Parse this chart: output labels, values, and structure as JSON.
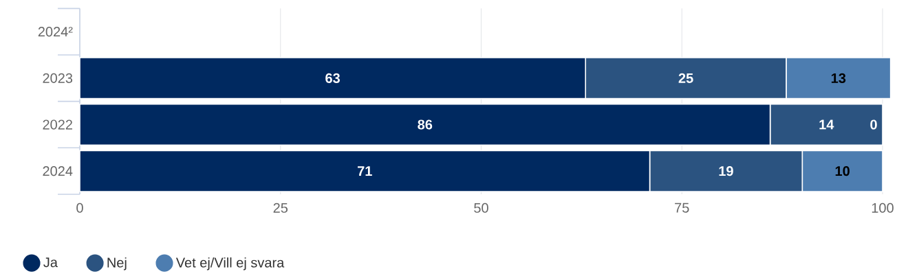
{
  "chart_data": {
    "type": "bar",
    "orientation": "horizontal",
    "stacked": true,
    "categories": [
      "2024²",
      "2023",
      "2022",
      "2024"
    ],
    "series": [
      {
        "name": "Ja",
        "color": "#002960",
        "values": [
          null,
          63,
          86,
          71
        ]
      },
      {
        "name": "Nej",
        "color": "#2b5380",
        "values": [
          null,
          25,
          14,
          19
        ]
      },
      {
        "name": "Vet ej/Vill ej svara",
        "color": "#4d7db0",
        "values": [
          null,
          13,
          0,
          10
        ]
      }
    ],
    "xlim": [
      0,
      101
    ],
    "xticks": [
      0,
      25,
      50,
      75,
      100
    ],
    "grid": "x",
    "legend": "bottom left",
    "data_labels": true
  }
}
